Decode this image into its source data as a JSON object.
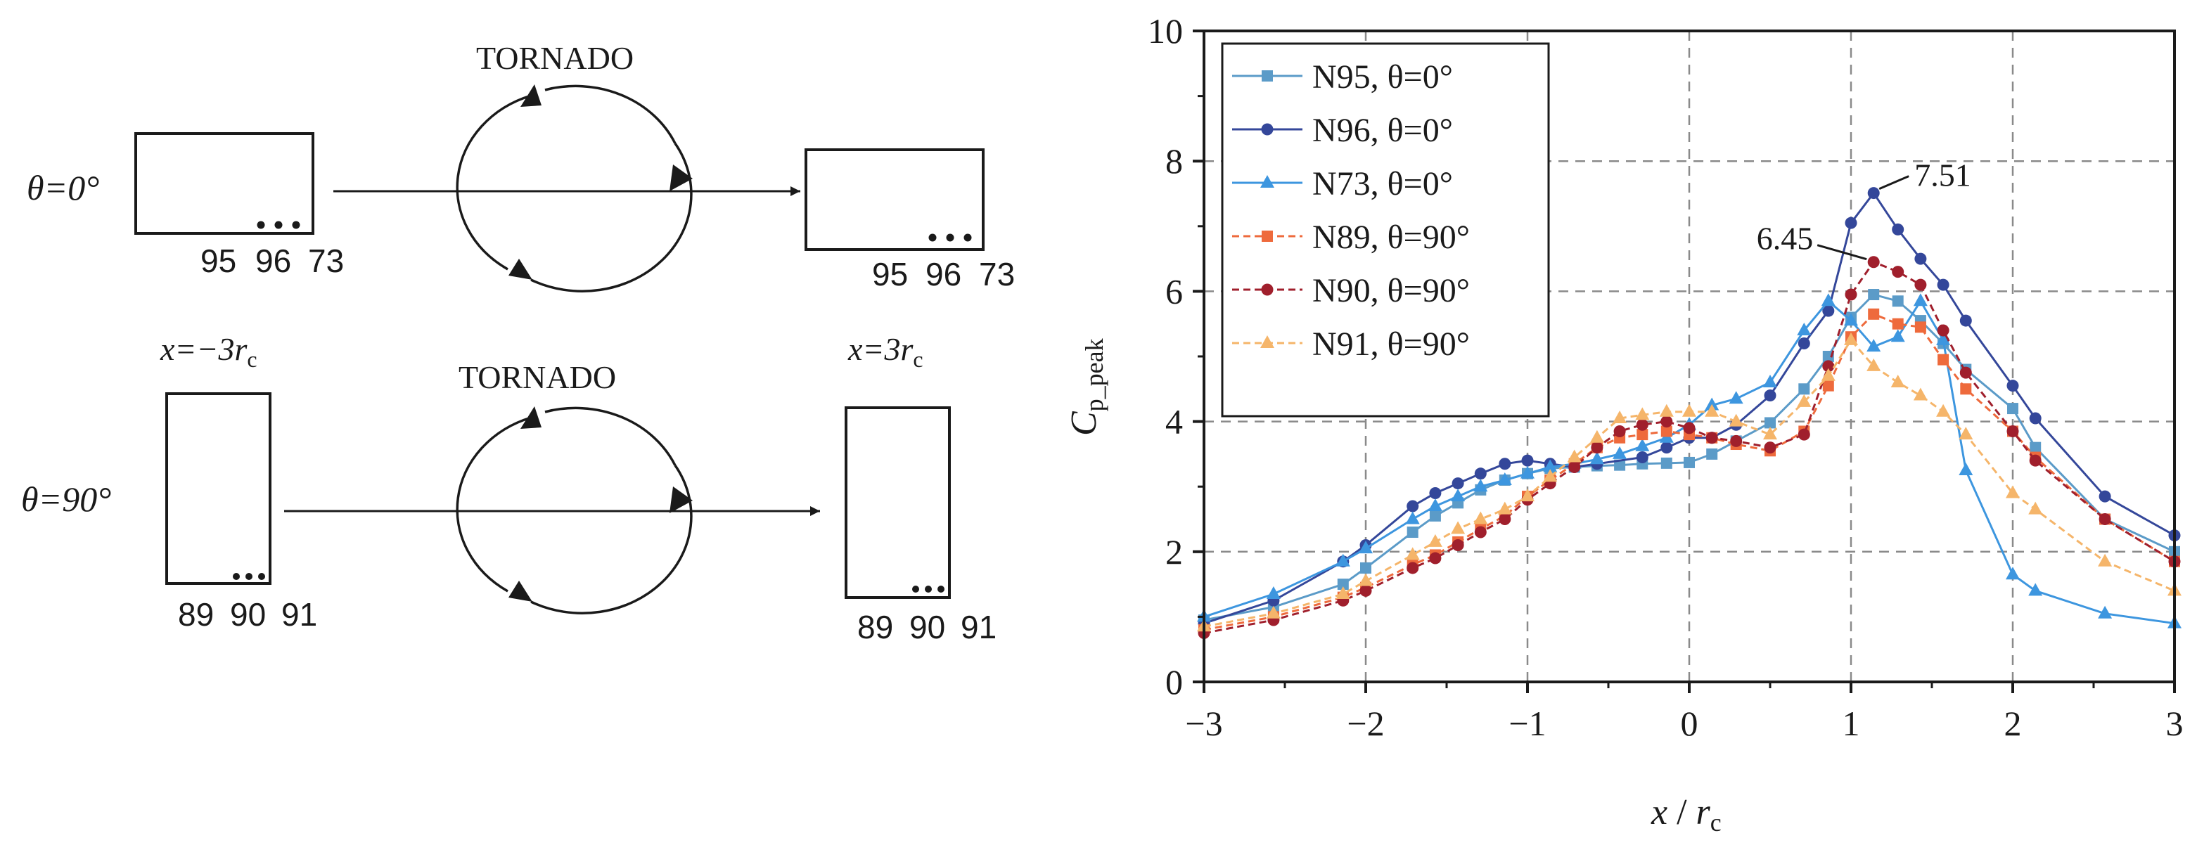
{
  "diagram": {
    "tornado_label": "TORNADO",
    "rows": [
      {
        "angle_label": "θ=0°",
        "left_taps": [
          "95",
          "96",
          "73"
        ],
        "right_taps": [
          "95",
          "96",
          "73"
        ]
      },
      {
        "angle_label": "θ=90°",
        "left_taps": [
          "89",
          "90",
          "91"
        ],
        "right_taps": [
          "89",
          "90",
          "91"
        ]
      }
    ],
    "position_labels": {
      "start_prefix": "x=−3r",
      "end_prefix": "x=3r",
      "subscript": "c"
    }
  },
  "chart_data": {
    "type": "line",
    "xlabel_main": "x",
    "xlabel_sep": " / ",
    "xlabel_r": "r",
    "xlabel_sub": "c",
    "ylabel_main": "C",
    "ylabel_sub": "p_peak",
    "xlim": [
      -3,
      3
    ],
    "ylim": [
      0,
      10
    ],
    "xticks": [
      -3,
      -2,
      -1,
      0,
      1,
      2,
      3
    ],
    "yticks": [
      0,
      2,
      4,
      6,
      8,
      10
    ],
    "grid": true,
    "legend_position": "top-left",
    "series": [
      {
        "name": "N95, θ=0°",
        "color": "#5b9bc8",
        "dashed": false,
        "marker": "square",
        "x": [
          -3,
          -2.57,
          -2.14,
          -2,
          -1.71,
          -1.57,
          -1.43,
          -1.29,
          -1.14,
          -1,
          -0.86,
          -0.71,
          -0.57,
          -0.43,
          -0.29,
          -0.14,
          0,
          0.14,
          0.29,
          0.5,
          0.71,
          0.86,
          1,
          1.14,
          1.29,
          1.43,
          1.57,
          1.71,
          2,
          2.14,
          2.57,
          3
        ],
        "y": [
          0.95,
          1.15,
          1.5,
          1.75,
          2.3,
          2.55,
          2.75,
          2.95,
          3.1,
          3.2,
          3.28,
          3.3,
          3.32,
          3.33,
          3.35,
          3.36,
          3.37,
          3.5,
          3.7,
          3.98,
          4.5,
          5.0,
          5.6,
          5.95,
          5.85,
          5.55,
          5.2,
          4.8,
          4.2,
          3.6,
          2.5,
          2.0
        ]
      },
      {
        "name": "N96, θ=0°",
        "color": "#34479a",
        "dashed": false,
        "marker": "circle",
        "x": [
          -3,
          -2.57,
          -2.14,
          -2,
          -1.71,
          -1.57,
          -1.43,
          -1.29,
          -1.14,
          -1,
          -0.86,
          -0.71,
          -0.57,
          -0.29,
          -0.14,
          0,
          0.14,
          0.29,
          0.5,
          0.71,
          0.86,
          1,
          1.14,
          1.29,
          1.43,
          1.57,
          1.71,
          2,
          2.14,
          2.57,
          3
        ],
        "y": [
          0.9,
          1.25,
          1.85,
          2.1,
          2.7,
          2.9,
          3.05,
          3.2,
          3.35,
          3.4,
          3.35,
          3.3,
          3.35,
          3.45,
          3.6,
          3.75,
          3.75,
          3.95,
          4.4,
          5.2,
          5.7,
          7.05,
          7.51,
          6.95,
          6.5,
          6.1,
          5.55,
          4.55,
          4.05,
          2.85,
          2.25
        ]
      },
      {
        "name": "N73, θ=0°",
        "color": "#3d96df",
        "dashed": false,
        "marker": "triangle",
        "x": [
          -3,
          -2.57,
          -2.14,
          -2,
          -1.71,
          -1.57,
          -1.43,
          -1.29,
          -1.14,
          -1,
          -0.86,
          -0.71,
          -0.57,
          -0.43,
          -0.29,
          -0.14,
          0,
          0.14,
          0.29,
          0.5,
          0.71,
          0.86,
          1,
          1.14,
          1.29,
          1.43,
          1.57,
          1.71,
          2,
          2.14,
          2.57,
          3
        ],
        "y": [
          1.0,
          1.35,
          1.85,
          2.05,
          2.5,
          2.7,
          2.85,
          3.0,
          3.1,
          3.2,
          3.3,
          3.35,
          3.42,
          3.5,
          3.62,
          3.75,
          3.95,
          4.25,
          4.35,
          4.6,
          5.4,
          5.85,
          5.55,
          5.15,
          5.3,
          5.85,
          5.25,
          3.25,
          1.65,
          1.4,
          1.05,
          0.9
        ]
      },
      {
        "name": "N89, θ=90°",
        "color": "#ee6a3c",
        "dashed": true,
        "marker": "square",
        "x": [
          -3,
          -2.57,
          -2.14,
          -2,
          -1.71,
          -1.57,
          -1.43,
          -1.29,
          -1.14,
          -1,
          -0.86,
          -0.71,
          -0.57,
          -0.43,
          -0.29,
          -0.14,
          0,
          0.14,
          0.29,
          0.5,
          0.71,
          0.86,
          1,
          1.14,
          1.29,
          1.43,
          1.57,
          1.71,
          2,
          2.14,
          2.57,
          3
        ],
        "y": [
          0.8,
          1.0,
          1.3,
          1.45,
          1.8,
          1.95,
          2.15,
          2.35,
          2.55,
          2.85,
          3.1,
          3.35,
          3.6,
          3.75,
          3.8,
          3.85,
          3.8,
          3.75,
          3.65,
          3.55,
          3.85,
          4.55,
          5.3,
          5.65,
          5.5,
          5.45,
          4.95,
          4.5,
          3.85,
          3.45,
          2.5,
          1.85
        ]
      },
      {
        "name": "N90, θ=90°",
        "color": "#a01f2c",
        "dashed": true,
        "marker": "circle",
        "x": [
          -3,
          -2.57,
          -2.14,
          -2,
          -1.71,
          -1.57,
          -1.43,
          -1.29,
          -1.14,
          -1,
          -0.86,
          -0.71,
          -0.57,
          -0.43,
          -0.29,
          -0.14,
          0,
          0.14,
          0.29,
          0.5,
          0.71,
          0.86,
          1,
          1.14,
          1.29,
          1.43,
          1.57,
          1.71,
          2,
          2.14,
          2.57,
          3
        ],
        "y": [
          0.75,
          0.95,
          1.25,
          1.4,
          1.75,
          1.9,
          2.1,
          2.3,
          2.5,
          2.8,
          3.05,
          3.3,
          3.6,
          3.85,
          3.95,
          4.0,
          3.9,
          3.75,
          3.7,
          3.6,
          3.8,
          4.85,
          5.95,
          6.45,
          6.3,
          6.1,
          5.4,
          4.75,
          3.85,
          3.4,
          2.5,
          1.85
        ]
      },
      {
        "name": "N91, θ=90°",
        "color": "#f5b56a",
        "dashed": true,
        "marker": "triangle",
        "x": [
          -3,
          -2.57,
          -2.14,
          -2,
          -1.71,
          -1.57,
          -1.43,
          -1.29,
          -1.14,
          -1,
          -0.86,
          -0.71,
          -0.57,
          -0.43,
          -0.29,
          -0.14,
          0,
          0.14,
          0.29,
          0.5,
          0.71,
          0.86,
          1,
          1.14,
          1.29,
          1.43,
          1.57,
          1.71,
          2,
          2.14,
          2.57,
          3
        ],
        "y": [
          0.85,
          1.05,
          1.35,
          1.55,
          1.95,
          2.15,
          2.35,
          2.5,
          2.65,
          2.85,
          3.15,
          3.45,
          3.75,
          4.05,
          4.1,
          4.15,
          4.15,
          4.15,
          4.0,
          3.8,
          4.3,
          4.7,
          5.25,
          4.85,
          4.6,
          4.4,
          4.15,
          3.8,
          2.9,
          2.65,
          1.85,
          1.4
        ]
      }
    ],
    "annotations": [
      {
        "text": "7.51",
        "x": 1.14,
        "y": 7.51
      },
      {
        "text": "6.45",
        "x": 1.14,
        "y": 6.45
      }
    ]
  }
}
